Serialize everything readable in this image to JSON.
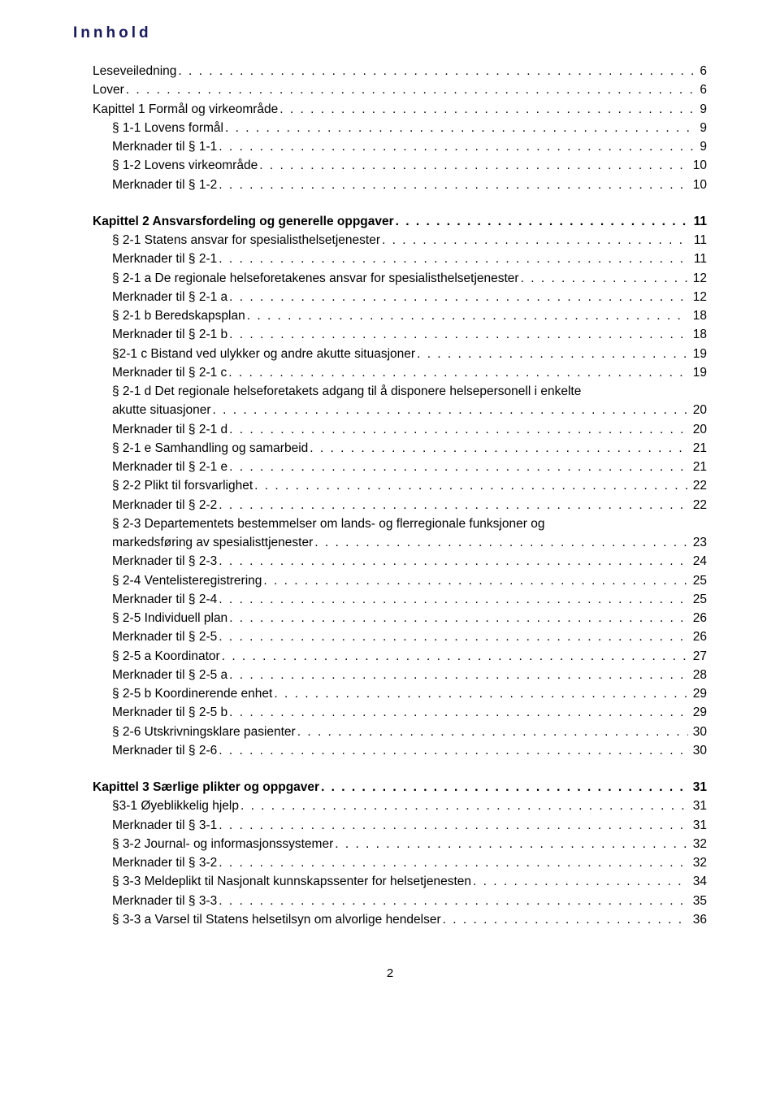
{
  "title": "Innhold",
  "footer_page": "2",
  "entries": [
    {
      "label": "Leseveiledning",
      "page": "6",
      "bold": false,
      "indent": 1,
      "spaceBefore": false
    },
    {
      "label": "Lover",
      "page": "6",
      "bold": false,
      "indent": 1,
      "spaceBefore": false
    },
    {
      "label": "Kapittel 1 Formål og virkeområde",
      "page": "9",
      "bold": false,
      "indent": 1,
      "spaceBefore": false
    },
    {
      "label": "§ 1-1 Lovens formål",
      "page": "9",
      "bold": false,
      "indent": 2,
      "spaceBefore": false
    },
    {
      "label": "Merknader til § 1-1",
      "page": "9",
      "bold": false,
      "indent": 2,
      "spaceBefore": false
    },
    {
      "label": "§ 1-2 Lovens virkeområde",
      "page": "10",
      "bold": false,
      "indent": 2,
      "spaceBefore": false
    },
    {
      "label": "Merknader til § 1-2",
      "page": "10",
      "bold": false,
      "indent": 2,
      "spaceBefore": false
    },
    {
      "label": "Kapittel 2 Ansvarsfordeling og generelle oppgaver",
      "page": "11",
      "bold": true,
      "indent": 1,
      "spaceBefore": true
    },
    {
      "label": "§ 2-1 Statens ansvar for spesialisthelsetjenester",
      "page": "11",
      "bold": false,
      "indent": 2,
      "spaceBefore": false
    },
    {
      "label": "Merknader til § 2-1",
      "page": "11",
      "bold": false,
      "indent": 2,
      "spaceBefore": false
    },
    {
      "label": "§ 2-1 a De regionale helseforetakenes ansvar for spesialisthelsetjenester",
      "page": "12",
      "bold": false,
      "indent": 2,
      "spaceBefore": false
    },
    {
      "label": "Merknader til § 2-1 a",
      "page": "12",
      "bold": false,
      "indent": 2,
      "spaceBefore": false
    },
    {
      "label": "§ 2-1 b Beredskapsplan",
      "page": "18",
      "bold": false,
      "indent": 2,
      "spaceBefore": false
    },
    {
      "label": "Merknader til § 2-1 b",
      "page": "18",
      "bold": false,
      "indent": 2,
      "spaceBefore": false
    },
    {
      "label": "§2-1 c Bistand ved ulykker og andre akutte situasjoner",
      "page": "19",
      "bold": false,
      "indent": 2,
      "spaceBefore": false
    },
    {
      "label": "Merknader til § 2-1 c",
      "page": "19",
      "bold": false,
      "indent": 2,
      "spaceBefore": false
    },
    {
      "label": "§ 2-1 d Det regionale helseforetakets adgang til å disponere helsepersonell i enkelte akutte situasjoner",
      "page": "20",
      "bold": false,
      "indent": 2,
      "spaceBefore": false,
      "multiline": true,
      "linePrefix": "§ 2-1 d Det regionale helseforetakets adgang til å disponere helsepersonell i enkelte",
      "lineLast": "akutte situasjoner"
    },
    {
      "label": "Merknader til § 2-1 d",
      "page": "20",
      "bold": false,
      "indent": 2,
      "spaceBefore": false
    },
    {
      "label": "§ 2-1 e Samhandling og samarbeid",
      "page": "21",
      "bold": false,
      "indent": 2,
      "spaceBefore": false
    },
    {
      "label": "Merknader til § 2-1 e",
      "page": "21",
      "bold": false,
      "indent": 2,
      "spaceBefore": false
    },
    {
      "label": "§ 2-2 Plikt til forsvarlighet",
      "page": "22",
      "bold": false,
      "indent": 2,
      "spaceBefore": false
    },
    {
      "label": "Merknader til § 2-2",
      "page": "22",
      "bold": false,
      "indent": 2,
      "spaceBefore": false
    },
    {
      "label": "§ 2-3 Departementets bestemmelser om lands- og flerregionale funksjoner og markedsføring av spesialisttjenester",
      "page": "23",
      "bold": false,
      "indent": 2,
      "spaceBefore": false,
      "multiline": true,
      "linePrefix": "§ 2-3 Departementets bestemmelser om lands- og flerregionale funksjoner og",
      "lineLast": "markedsføring av spesialisttjenester"
    },
    {
      "label": "Merknader til § 2-3",
      "page": "24",
      "bold": false,
      "indent": 2,
      "spaceBefore": false
    },
    {
      "label": "§ 2-4 Ventelisteregistrering",
      "page": "25",
      "bold": false,
      "indent": 2,
      "spaceBefore": false
    },
    {
      "label": "Merknader til § 2-4",
      "page": "25",
      "bold": false,
      "indent": 2,
      "spaceBefore": false
    },
    {
      "label": "§ 2-5 Individuell plan",
      "page": "26",
      "bold": false,
      "indent": 2,
      "spaceBefore": false
    },
    {
      "label": "Merknader til § 2-5",
      "page": "26",
      "bold": false,
      "indent": 2,
      "spaceBefore": false
    },
    {
      "label": "§ 2-5 a Koordinator",
      "page": "27",
      "bold": false,
      "indent": 2,
      "spaceBefore": false
    },
    {
      "label": "Merknader til § 2-5 a",
      "page": "28",
      "bold": false,
      "indent": 2,
      "spaceBefore": false
    },
    {
      "label": "§ 2-5 b Koordinerende enhet",
      "page": "29",
      "bold": false,
      "indent": 2,
      "spaceBefore": false
    },
    {
      "label": "Merknader til § 2-5 b",
      "page": "29",
      "bold": false,
      "indent": 2,
      "spaceBefore": false
    },
    {
      "label": "§ 2-6 Utskrivningsklare pasienter",
      "page": "30",
      "bold": false,
      "indent": 2,
      "spaceBefore": false
    },
    {
      "label": "Merknader til § 2-6",
      "page": "30",
      "bold": false,
      "indent": 2,
      "spaceBefore": false
    },
    {
      "label": "Kapittel 3 Særlige plikter og oppgaver",
      "page": "31",
      "bold": true,
      "indent": 1,
      "spaceBefore": true
    },
    {
      "label": "§3-1 Øyeblikkelig hjelp",
      "page": "31",
      "bold": false,
      "indent": 2,
      "spaceBefore": false
    },
    {
      "label": "Merknader til § 3-1",
      "page": "31",
      "bold": false,
      "indent": 2,
      "spaceBefore": false
    },
    {
      "label": "§ 3-2 Journal- og informasjonssystemer",
      "page": "32",
      "bold": false,
      "indent": 2,
      "spaceBefore": false
    },
    {
      "label": "Merknader til § 3-2",
      "page": "32",
      "bold": false,
      "indent": 2,
      "spaceBefore": false
    },
    {
      "label": "§ 3-3 Meldeplikt til Nasjonalt kunnskapssenter for helsetjenesten",
      "page": "34",
      "bold": false,
      "indent": 2,
      "spaceBefore": false
    },
    {
      "label": "Merknader til § 3-3",
      "page": "35",
      "bold": false,
      "indent": 2,
      "spaceBefore": false
    },
    {
      "label": "§ 3-3 a Varsel til Statens helsetilsyn om alvorlige hendelser",
      "page": "36",
      "bold": false,
      "indent": 2,
      "spaceBefore": false
    }
  ]
}
